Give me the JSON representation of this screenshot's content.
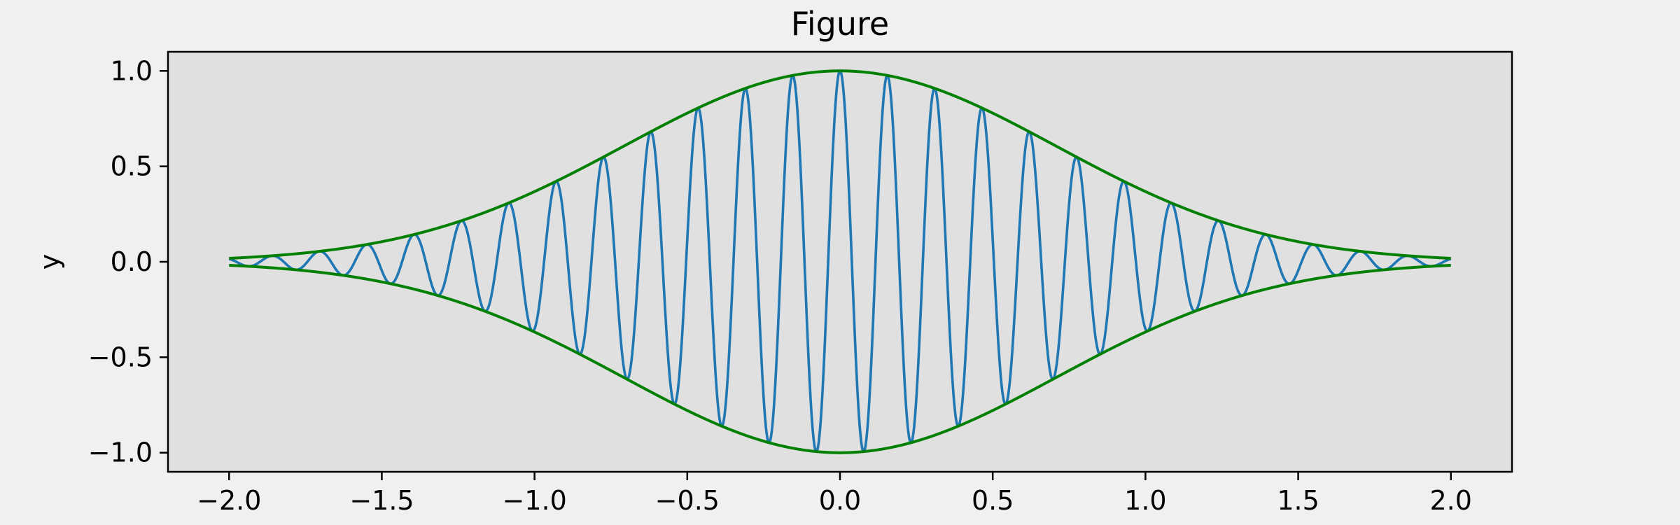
{
  "window": {
    "title": "Figure"
  },
  "chart_data": {
    "type": "line",
    "title": "Figure",
    "xlabel": "",
    "ylabel": "y",
    "xlim": [
      -2.2,
      2.2
    ],
    "ylim": [
      -1.1,
      1.1
    ],
    "xticks": [
      -2.0,
      -1.5,
      -1.0,
      -0.5,
      0.0,
      0.5,
      1.0,
      1.5,
      2.0
    ],
    "xtick_labels": [
      "−2.0",
      "−1.5",
      "−1.0",
      "−0.5",
      "0.0",
      "0.5",
      "1.0",
      "1.5",
      "2.0"
    ],
    "yticks": [
      1.0,
      0.5,
      0.0,
      -0.5,
      -1.0
    ],
    "ytick_labels": [
      "1.0",
      "0.5",
      "0.0",
      "−0.5",
      "−1.0"
    ],
    "grid": false,
    "legend": "none",
    "x_range": [
      -2.0,
      2.0
    ],
    "series": [
      {
        "kind": "carrier",
        "function": "exp(-x^2) * cos(2*pi*x/0.155)",
        "period": 0.155,
        "color": "#1f77b4"
      },
      {
        "kind": "upper-envelope",
        "function": "exp(-x^2)",
        "color": "#008000"
      },
      {
        "kind": "lower-envelope",
        "function": "-exp(-x^2)",
        "color": "#008000"
      }
    ],
    "colors": {
      "plot_background": "#e0e0e0",
      "figure_background": "#f0f0f0"
    }
  }
}
